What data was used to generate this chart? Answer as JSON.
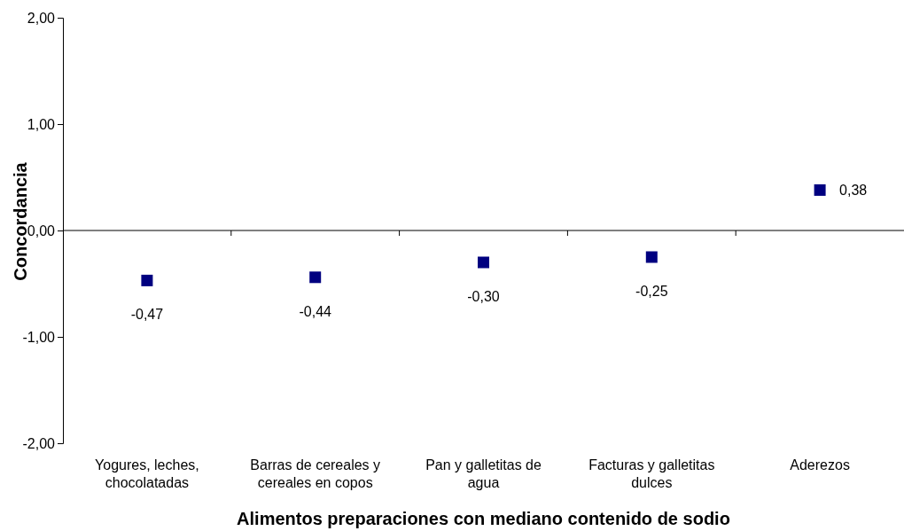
{
  "chart_data": {
    "type": "scatter",
    "xlabel": "Alimentos preparaciones con mediano contenido de sodio",
    "ylabel": "Concordancia",
    "categories": [
      "Yogures, leches, chocolatadas",
      "Barras de cereales y cereales en copos",
      "Pan y galletitas de agua",
      "Facturas y galletitas dulces",
      "Aderezos"
    ],
    "series": [
      {
        "color": "#000080",
        "values": [
          -0.47,
          -0.44,
          -0.3,
          -0.25,
          0.38
        ],
        "value_labels": [
          "-0,47",
          "-0,44",
          "-0,30",
          "-0,25",
          "0,38"
        ]
      }
    ],
    "ylim": [
      -2,
      2
    ],
    "yticks": [
      {
        "value": -2,
        "label": "-2,00"
      },
      {
        "value": -1,
        "label": "-1,00"
      },
      {
        "value": 0,
        "label": "0,00"
      },
      {
        "value": 1,
        "label": "1,00"
      },
      {
        "value": 2,
        "label": "2,00"
      }
    ],
    "marker": "square"
  }
}
